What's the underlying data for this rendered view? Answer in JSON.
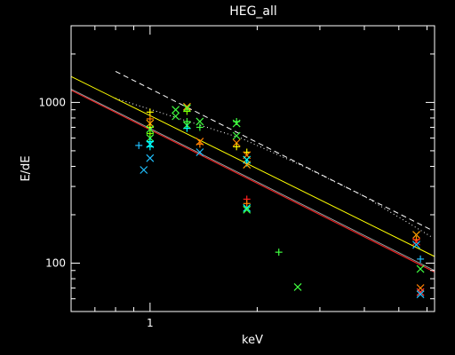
{
  "chart_data": {
    "type": "scatter",
    "title": "HEG_all",
    "xlabel": "keV",
    "ylabel": "E/dE",
    "x_scale": "log",
    "y_scale": "log",
    "xlim": [
      0.6,
      6.3
    ],
    "ylim": [
      50,
      3000
    ],
    "x_tick_labels": [
      {
        "value": 1,
        "label": "1"
      }
    ],
    "y_tick_labels": [
      {
        "value": 100,
        "label": "100"
      },
      {
        "value": 1000,
        "label": "1000"
      }
    ],
    "grid": false,
    "background": "#000000",
    "axis_color": "#ffffff",
    "lines": [
      {
        "style": "dashed",
        "color": "#ffffff",
        "points": [
          [
            0.8,
            1560
          ],
          [
            6.2,
            160
          ]
        ]
      },
      {
        "style": "dotted",
        "color": "#ffffff",
        "points": [
          [
            0.8,
            1060
          ],
          [
            1.8,
            600
          ],
          [
            2.7,
            400
          ],
          [
            4.0,
            260
          ],
          [
            6.2,
            145
          ]
        ]
      },
      {
        "style": "solid",
        "color": "#ffff00",
        "points": [
          [
            0.6,
            1450
          ],
          [
            6.3,
            110
          ]
        ]
      },
      {
        "style": "solid",
        "color": "#ff2020",
        "points": [
          [
            0.6,
            1190
          ],
          [
            6.3,
            88
          ]
        ]
      },
      {
        "style": "solid",
        "color": "#9aa0a0",
        "points": [
          [
            0.6,
            1210
          ],
          [
            6.3,
            90
          ]
        ]
      }
    ],
    "points": [
      {
        "x": 0.93,
        "y": 540,
        "marker": "plus",
        "color": "#20c0ff"
      },
      {
        "x": 0.96,
        "y": 380,
        "marker": "x",
        "color": "#20c0ff"
      },
      {
        "x": 1.0,
        "y": 870,
        "marker": "plus",
        "color": "#ffff00"
      },
      {
        "x": 1.0,
        "y": 790,
        "marker": "plus",
        "color": "#ff8000"
      },
      {
        "x": 1.0,
        "y": 740,
        "marker": "x",
        "color": "#ffa000"
      },
      {
        "x": 1.0,
        "y": 700,
        "marker": "plus",
        "color": "#ffff00"
      },
      {
        "x": 1.0,
        "y": 680,
        "marker": "x",
        "color": "#40ff40"
      },
      {
        "x": 1.0,
        "y": 640,
        "marker": "plus",
        "color": "#80ff00"
      },
      {
        "x": 1.0,
        "y": 600,
        "marker": "x",
        "color": "#40ff40"
      },
      {
        "x": 1.0,
        "y": 570,
        "marker": "plus",
        "color": "#00ffff"
      },
      {
        "x": 1.0,
        "y": 550,
        "marker": "x",
        "color": "#00ffff"
      },
      {
        "x": 1.0,
        "y": 530,
        "marker": "plus",
        "color": "#00ffff"
      },
      {
        "x": 1.0,
        "y": 450,
        "marker": "x",
        "color": "#20c0ff"
      },
      {
        "x": 1.18,
        "y": 820,
        "marker": "x",
        "color": "#40ff40"
      },
      {
        "x": 1.18,
        "y": 900,
        "marker": "x",
        "color": "#40ff40"
      },
      {
        "x": 1.27,
        "y": 940,
        "marker": "x",
        "color": "#ffa000"
      },
      {
        "x": 1.27,
        "y": 920,
        "marker": "x",
        "color": "#40ff40"
      },
      {
        "x": 1.27,
        "y": 880,
        "marker": "plus",
        "color": "#80ff00"
      },
      {
        "x": 1.27,
        "y": 760,
        "marker": "plus",
        "color": "#40ff40"
      },
      {
        "x": 1.27,
        "y": 720,
        "marker": "x",
        "color": "#40ff40"
      },
      {
        "x": 1.27,
        "y": 690,
        "marker": "plus",
        "color": "#00ffff"
      },
      {
        "x": 1.38,
        "y": 760,
        "marker": "x",
        "color": "#40ff40"
      },
      {
        "x": 1.38,
        "y": 700,
        "marker": "plus",
        "color": "#40ff40"
      },
      {
        "x": 1.38,
        "y": 570,
        "marker": "x",
        "color": "#ff8000"
      },
      {
        "x": 1.38,
        "y": 550,
        "marker": "plus",
        "color": "#ff8000"
      },
      {
        "x": 1.38,
        "y": 490,
        "marker": "x",
        "color": "#20c0ff"
      },
      {
        "x": 1.75,
        "y": 760,
        "marker": "plus",
        "color": "#40ff40"
      },
      {
        "x": 1.75,
        "y": 740,
        "marker": "x",
        "color": "#40ff40"
      },
      {
        "x": 1.75,
        "y": 620,
        "marker": "x",
        "color": "#40ff40"
      },
      {
        "x": 1.75,
        "y": 560,
        "marker": "x",
        "color": "#ff8000"
      },
      {
        "x": 1.75,
        "y": 530,
        "marker": "plus",
        "color": "#ffff00"
      },
      {
        "x": 1.87,
        "y": 490,
        "marker": "plus",
        "color": "#ffff00"
      },
      {
        "x": 1.87,
        "y": 470,
        "marker": "x",
        "color": "#ff8000"
      },
      {
        "x": 1.87,
        "y": 440,
        "marker": "x",
        "color": "#00ffff"
      },
      {
        "x": 1.87,
        "y": 420,
        "marker": "plus",
        "color": "#00ffff"
      },
      {
        "x": 1.87,
        "y": 410,
        "marker": "x",
        "color": "#ffa000"
      },
      {
        "x": 1.87,
        "y": 250,
        "marker": "plus",
        "color": "#ff2020"
      },
      {
        "x": 1.87,
        "y": 235,
        "marker": "plus",
        "color": "#ff8000"
      },
      {
        "x": 1.87,
        "y": 220,
        "marker": "x",
        "color": "#00ffff"
      },
      {
        "x": 1.87,
        "y": 215,
        "marker": "x",
        "color": "#40ff40"
      },
      {
        "x": 2.3,
        "y": 117,
        "marker": "plus",
        "color": "#40ff40"
      },
      {
        "x": 2.6,
        "y": 71,
        "marker": "x",
        "color": "#40ff40"
      },
      {
        "x": 5.6,
        "y": 150,
        "marker": "x",
        "color": "#ffa000"
      },
      {
        "x": 5.6,
        "y": 140,
        "marker": "plus",
        "color": "#ff8000"
      },
      {
        "x": 5.6,
        "y": 136,
        "marker": "x",
        "color": "#ff2020"
      },
      {
        "x": 5.6,
        "y": 130,
        "marker": "x",
        "color": "#20c0ff"
      },
      {
        "x": 5.75,
        "y": 106,
        "marker": "plus",
        "color": "#20c0ff"
      },
      {
        "x": 5.75,
        "y": 92,
        "marker": "x",
        "color": "#40ff40"
      },
      {
        "x": 5.75,
        "y": 70,
        "marker": "x",
        "color": "#ff8000"
      },
      {
        "x": 5.75,
        "y": 66,
        "marker": "x",
        "color": "#ff4040"
      },
      {
        "x": 5.75,
        "y": 64,
        "marker": "x",
        "color": "#20c0ff"
      }
    ]
  }
}
